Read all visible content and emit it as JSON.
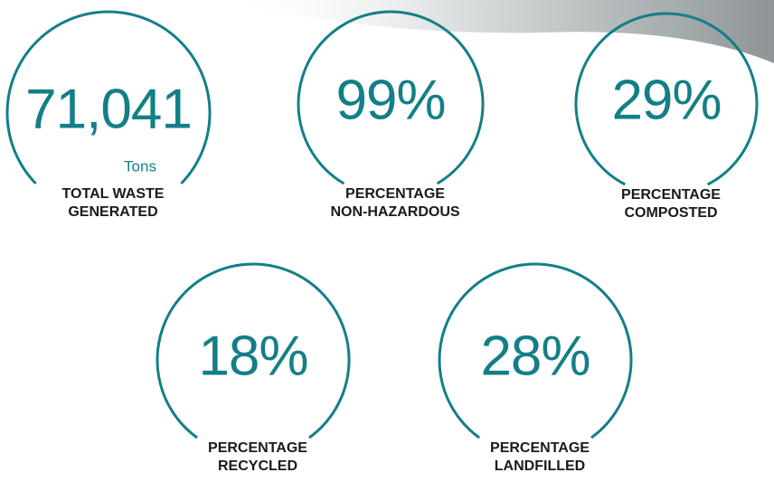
{
  "stats": [
    {
      "value": "71,041",
      "unit": "Tons",
      "label": [
        "TOTAL WASTE",
        "GENERATED"
      ]
    },
    {
      "value": "99%",
      "label": [
        "PERCENTAGE",
        "NON-HAZARDOUS"
      ]
    },
    {
      "value": "29%",
      "label": [
        "PERCENTAGE",
        "COMPOSTED"
      ]
    },
    {
      "value": "18%",
      "label": [
        "PERCENTAGE",
        "RECYCLED"
      ]
    },
    {
      "value": "28%",
      "label": [
        "PERCENTAGE",
        "LANDFILLED"
      ]
    }
  ]
}
